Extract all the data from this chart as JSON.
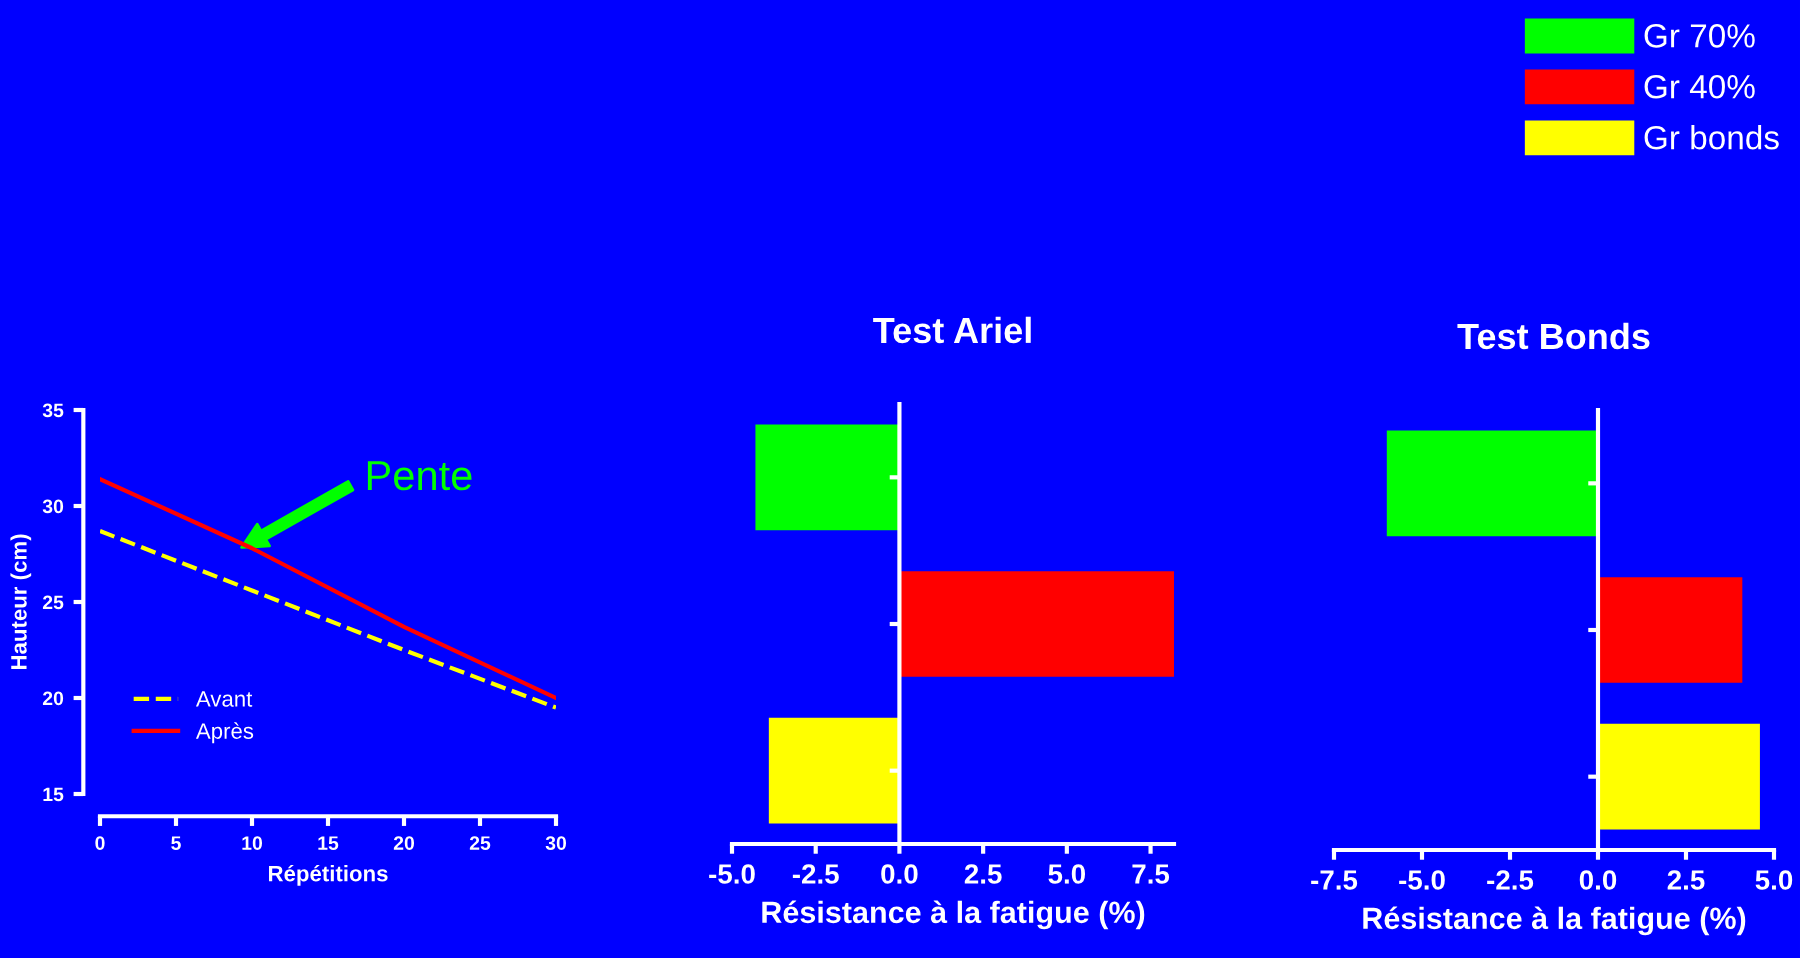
{
  "chart_data": [
    {
      "type": "line",
      "xlabel": "Répétitions",
      "ylabel": "Hauteur (cm)",
      "xlim": [
        0,
        30
      ],
      "ylim": [
        15,
        35
      ],
      "xticks": [
        0,
        5,
        10,
        15,
        20,
        25,
        30
      ],
      "yticks": [
        15,
        20,
        25,
        30,
        35
      ],
      "grid": false,
      "legend": "bottom left",
      "marker": "none",
      "series": [
        {
          "name": "Avant",
          "color": "#ffff00",
          "line_style": "dashed",
          "x": [
            0,
            10,
            20,
            30
          ],
          "values": [
            28.7,
            25.6,
            22.5,
            19.5
          ]
        },
        {
          "name": "Après",
          "color": "#ff0000",
          "line_style": "solid",
          "x": [
            0,
            10,
            20,
            30
          ],
          "values": [
            31.4,
            27.8,
            23.7,
            20.0
          ]
        }
      ],
      "annotations": [
        "Pente"
      ]
    },
    {
      "type": "bar",
      "orientation": "horizontal",
      "stacked": true,
      "title": "Test Ariel",
      "xlabel": "Résistance à la fatigue (%)",
      "categories": [
        null,
        null,
        null
      ],
      "xlim": [
        -5,
        8.2
      ],
      "xticks": [
        {
          "value": -5,
          "label": "-5.0"
        },
        {
          "value": -2.5,
          "label": "-2.5"
        },
        {
          "value": 0,
          "label": "0.0"
        },
        {
          "value": 2.5,
          "label": "2.5"
        },
        {
          "value": 5,
          "label": "5.0"
        },
        {
          "value": 7.5,
          "label": "7.5"
        }
      ],
      "tick_labels": "x",
      "series": [
        {
          "color": "#00ff00",
          "values": [
            -4.3,
            null,
            null
          ]
        },
        {
          "color": "#ff0000",
          "values": [
            null,
            8.2,
            null
          ]
        },
        {
          "color": "#ffff00",
          "values": [
            null,
            null,
            -3.9
          ]
        }
      ]
    },
    {
      "type": "bar",
      "orientation": "horizontal",
      "stacked": true,
      "title": "Test Bonds",
      "xlabel": "Résistance à la fatigue (%)",
      "categories": [
        null,
        null,
        null
      ],
      "xlim": [
        -7.5,
        5
      ],
      "xticks": [
        {
          "value": -7.5,
          "label": "-7.5"
        },
        {
          "value": -5,
          "label": "-5.0"
        },
        {
          "value": -2.5,
          "label": "-2.5"
        },
        {
          "value": 0,
          "label": "0.0"
        },
        {
          "value": 2.5,
          "label": "2.5"
        },
        {
          "value": 5,
          "label": "5.0"
        }
      ],
      "tick_labels": "x",
      "legend": "top right",
      "series": [
        {
          "name": "Gr 70%",
          "color": "#00ff00",
          "values": [
            -6.0,
            null,
            null
          ]
        },
        {
          "name": "Gr 40%",
          "color": "#ff0000",
          "values": [
            null,
            4.1,
            null
          ]
        },
        {
          "name": "Gr bonds",
          "color": "#ffff00",
          "values": [
            null,
            null,
            4.6
          ]
        }
      ]
    }
  ]
}
